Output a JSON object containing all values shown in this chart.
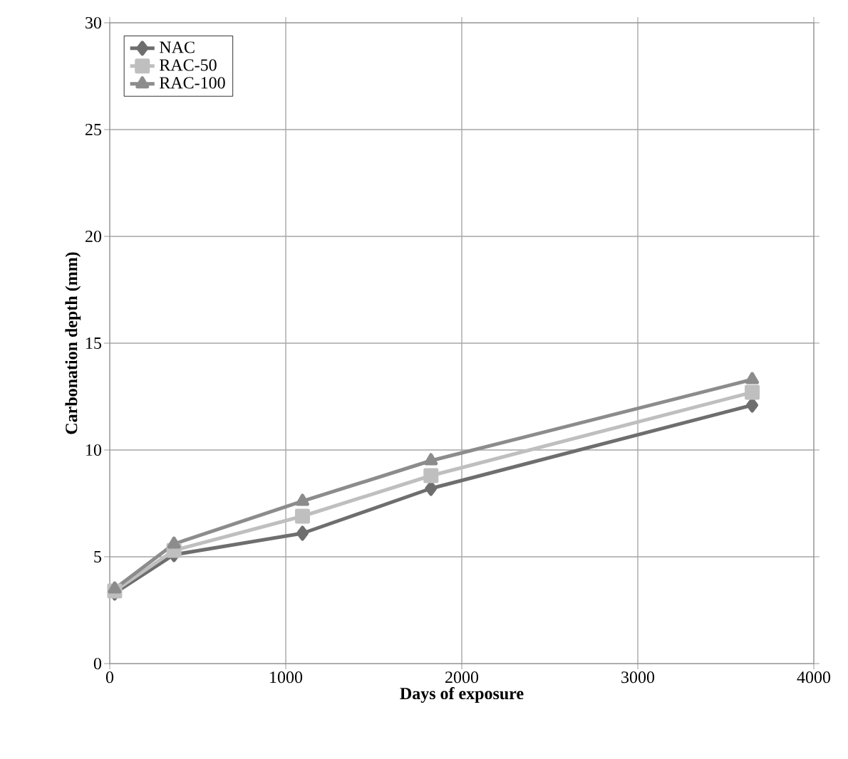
{
  "chart_data": {
    "type": "line",
    "xlabel": "Days of exposure",
    "ylabel": "Carbonation depth (mm)",
    "x": [
      28,
      365,
      1095,
      1825,
      3650
    ],
    "series": [
      {
        "name": "NAC",
        "color": "#6e6e6e",
        "marker": "diamond",
        "values": [
          3.3,
          5.1,
          6.1,
          8.2,
          12.1
        ]
      },
      {
        "name": "RAC-50",
        "color": "#bfbfbf",
        "marker": "square",
        "values": [
          3.4,
          5.3,
          6.9,
          8.8,
          12.7
        ]
      },
      {
        "name": "RAC-100",
        "color": "#8c8c8c",
        "marker": "triangle",
        "values": [
          3.5,
          5.6,
          7.6,
          9.5,
          13.3
        ]
      }
    ],
    "xlim": [
      0,
      4000
    ],
    "xticks": [
      0,
      1000,
      2000,
      3000,
      4000
    ],
    "ylim": [
      0,
      30
    ],
    "yticks": [
      0,
      5,
      10,
      15,
      20,
      25,
      30
    ],
    "grid": true,
    "legend": "top left",
    "line_style": "solid"
  }
}
